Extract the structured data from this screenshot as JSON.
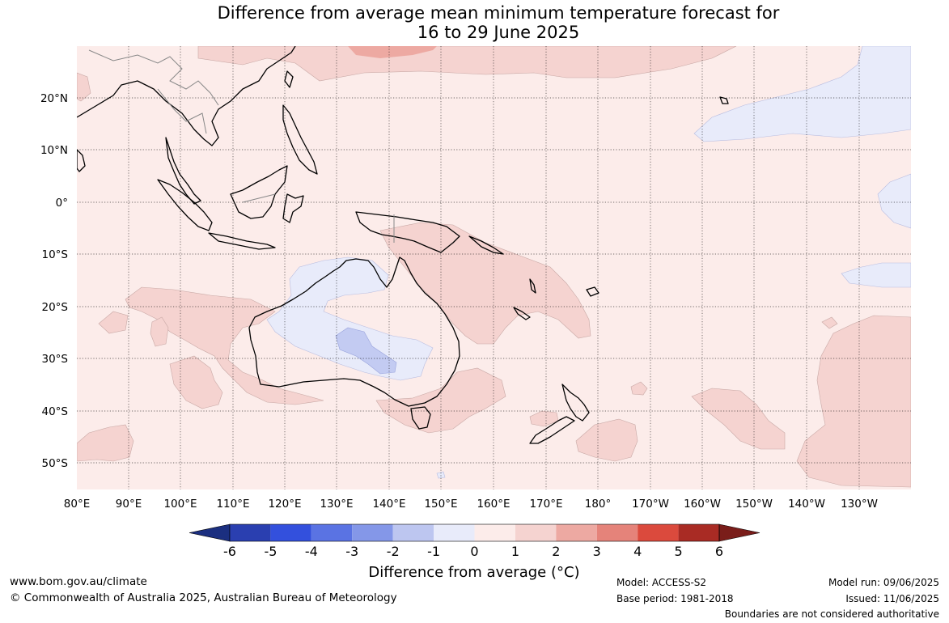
{
  "title": {
    "line1": "Difference from average mean minimum temperature forecast for",
    "line2": "16 to 29 June 2025"
  },
  "map": {
    "lon_labels": [
      "80°E",
      "90°E",
      "100°E",
      "110°E",
      "120°E",
      "130°E",
      "140°E",
      "150°E",
      "160°E",
      "170°E",
      "180°",
      "170°W",
      "160°W",
      "150°W",
      "140°W",
      "130°W"
    ],
    "lat_labels": [
      "20°N",
      "10°N",
      "0°",
      "10°S",
      "20°S",
      "30°S",
      "40°S",
      "50°S"
    ]
  },
  "colorbar": {
    "title": "Difference from average (°C)",
    "ticks": [
      "-6",
      "-5",
      "-4",
      "-3",
      "-2",
      "-1",
      "0",
      "1",
      "2",
      "3",
      "4",
      "5",
      "6"
    ],
    "colors": [
      "#1b2f80",
      "#2a3fb0",
      "#3350dd",
      "#5a73e3",
      "#8497e8",
      "#bdc6f0",
      "#e8ebfa",
      "#fcecea",
      "#f5d3d0",
      "#eda9a2",
      "#e5837a",
      "#db4a3d",
      "#a92b24",
      "#7a1d1a"
    ]
  },
  "footer": {
    "url": "www.bom.gov.au/climate",
    "copyright": "© Commonwealth of Australia 2025, Australian Bureau of Meteorology",
    "model": "Model: ACCESS-S2",
    "base_period": "Base period: 1981-2018",
    "model_run": "Model run: 09/06/2025",
    "issued": "Issued: 11/06/2025",
    "disclaimer": "Boundaries are not considered authoritative"
  }
}
